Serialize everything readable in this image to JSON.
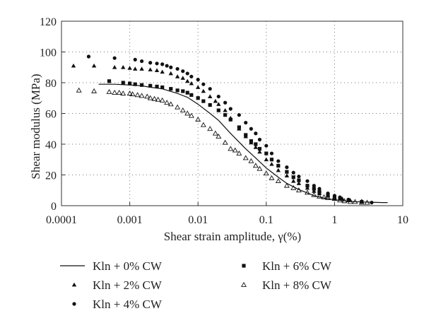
{
  "chart_data": {
    "type": "scatter",
    "title": "",
    "xlabel": "Shear strain amplitude, γ(%)",
    "ylabel": "Shear modulus (MPa)",
    "xscale": "log",
    "xlim": [
      0.0001,
      10
    ],
    "ylim": [
      0,
      120
    ],
    "xticks": [
      0.0001,
      0.001,
      0.01,
      0.1,
      1,
      10
    ],
    "xtick_labels": [
      "0.0001",
      "0.001",
      "0.01",
      "0.1",
      "1",
      "10"
    ],
    "yticks": [
      0,
      20,
      40,
      60,
      80,
      100,
      120
    ],
    "ytick_labels": [
      "0",
      "20",
      "40",
      "60",
      "80",
      "100",
      "120"
    ],
    "grid": "dotted",
    "legend_position": "bottom",
    "series": [
      {
        "name": "Kln + 0% CW",
        "marker": "line",
        "x": [
          0.00035,
          0.0006,
          0.001,
          0.0015,
          0.002,
          0.003,
          0.005,
          0.007,
          0.01,
          0.015,
          0.02,
          0.03,
          0.05,
          0.07,
          0.1,
          0.15,
          0.2,
          0.3,
          0.5,
          0.7,
          1,
          1.5,
          2,
          3,
          5,
          6
        ],
        "y": [
          79,
          79,
          78.5,
          78,
          77,
          76,
          73,
          70.5,
          66,
          60,
          55.5,
          47,
          37,
          31,
          24.5,
          18.5,
          14.5,
          10.5,
          6.5,
          5,
          3.8,
          3,
          2.6,
          2.3,
          2,
          2
        ]
      },
      {
        "name": "Kln + 2% CW",
        "marker": "triangle",
        "x": [
          0.00015,
          0.0003,
          0.0006,
          0.0008,
          0.001,
          0.0012,
          0.0015,
          0.002,
          0.0025,
          0.003,
          0.004,
          0.005,
          0.006,
          0.007,
          0.008,
          0.01,
          0.012,
          0.015,
          0.018,
          0.02,
          0.025,
          0.03,
          0.04,
          0.05,
          0.06,
          0.07,
          0.08,
          0.1,
          0.12,
          0.15,
          0.2,
          0.25,
          0.3,
          0.4,
          0.5,
          0.6,
          0.8,
          1,
          1.3,
          1.7,
          2.5
        ],
        "y": [
          91,
          91,
          90,
          90,
          89.5,
          89,
          89,
          88.5,
          88,
          87,
          86,
          84,
          83,
          81,
          79.5,
          77,
          74.5,
          71,
          68,
          66,
          62,
          57,
          50,
          45,
          41,
          38,
          35,
          30,
          27,
          23,
          19.5,
          16,
          14.5,
          11.5,
          9.5,
          8,
          6.5,
          5.5,
          4.5,
          3.5,
          3
        ]
      },
      {
        "name": "Kln + 4% CW",
        "marker": "circle",
        "x": [
          0.00025,
          0.0006,
          0.0012,
          0.0015,
          0.002,
          0.0025,
          0.003,
          0.0035,
          0.004,
          0.005,
          0.006,
          0.007,
          0.008,
          0.01,
          0.012,
          0.015,
          0.02,
          0.025,
          0.03,
          0.04,
          0.05,
          0.06,
          0.07,
          0.08,
          0.1,
          0.12,
          0.15,
          0.2,
          0.25,
          0.3,
          0.4,
          0.5,
          0.6,
          0.8,
          1,
          1.2,
          1.6,
          3.5
        ],
        "y": [
          97,
          96,
          95,
          94,
          93,
          92.5,
          92,
          91,
          90,
          89,
          87.5,
          86,
          84,
          82,
          79,
          76,
          71,
          67,
          63,
          59,
          54,
          50,
          47,
          43,
          39,
          34,
          29,
          25,
          21.5,
          19,
          16,
          13,
          11,
          8,
          6.5,
          5.5,
          4,
          2
        ]
      },
      {
        "name": "Kln + 6% CW",
        "marker": "square",
        "x": [
          0.0005,
          0.0008,
          0.001,
          0.0012,
          0.0015,
          0.002,
          0.0025,
          0.003,
          0.004,
          0.005,
          0.006,
          0.007,
          0.008,
          0.01,
          0.012,
          0.015,
          0.02,
          0.025,
          0.03,
          0.04,
          0.05,
          0.06,
          0.07,
          0.08,
          0.1,
          0.12,
          0.15,
          0.2,
          0.25,
          0.3,
          0.4,
          0.5,
          0.6,
          0.8,
          1,
          1.2,
          1.6,
          2.5
        ],
        "y": [
          81,
          80,
          79.5,
          79,
          78.5,
          78,
          77.5,
          77,
          76,
          75,
          74.5,
          73.5,
          72,
          70,
          68,
          65.5,
          62,
          59,
          56,
          51,
          46,
          42,
          40,
          37,
          34,
          30,
          26,
          22,
          18.5,
          16.5,
          13,
          11,
          9,
          6.5,
          5,
          4.5,
          3.5,
          2.5
        ]
      },
      {
        "name": "Kln + 8% CW",
        "marker": "open-triangle",
        "x": [
          0.00018,
          0.0003,
          0.0005,
          0.0006,
          0.0007,
          0.0008,
          0.001,
          0.0011,
          0.0013,
          0.0015,
          0.0018,
          0.002,
          0.0023,
          0.0026,
          0.003,
          0.0035,
          0.004,
          0.005,
          0.006,
          0.007,
          0.008,
          0.01,
          0.012,
          0.015,
          0.018,
          0.02,
          0.025,
          0.03,
          0.035,
          0.04,
          0.05,
          0.06,
          0.07,
          0.08,
          0.1,
          0.12,
          0.15,
          0.2,
          0.25,
          0.3,
          0.4,
          0.5,
          0.6,
          0.7,
          0.8,
          1,
          1.2,
          1.4,
          1.7,
          2,
          2.5,
          3
        ],
        "y": [
          75,
          74.5,
          74,
          73.5,
          73.5,
          73,
          73,
          72.5,
          72,
          71.5,
          71,
          70,
          69.5,
          69,
          68.5,
          67,
          66,
          64,
          62,
          60,
          58.5,
          56,
          52.5,
          50,
          47,
          45,
          41,
          37,
          36,
          34,
          31,
          29,
          26,
          24,
          21,
          18,
          16,
          13,
          11.5,
          10,
          8.5,
          7,
          6,
          5.5,
          5,
          4.5,
          3.5,
          3,
          2.5,
          2.5,
          2,
          2
        ]
      }
    ]
  }
}
